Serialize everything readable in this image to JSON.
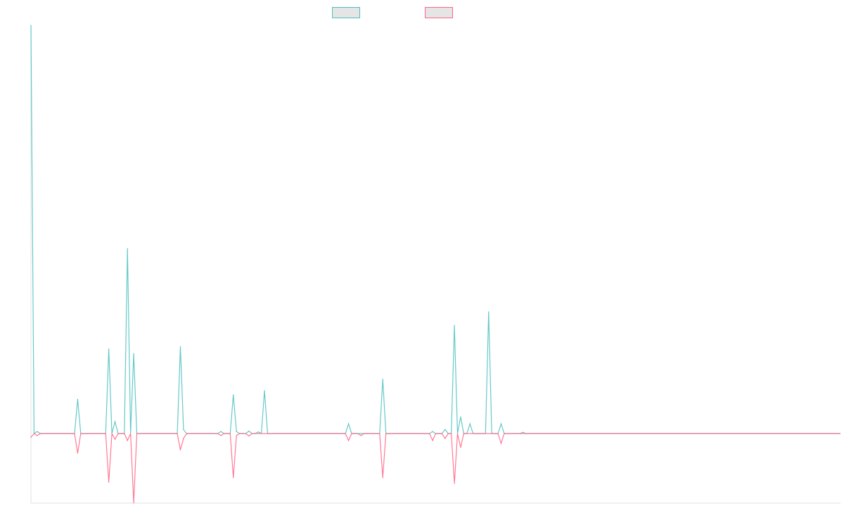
{
  "chart_data": {
    "type": "line",
    "title": "",
    "xlabel": "",
    "ylabel": "",
    "xlim": [
      0,
      260
    ],
    "ylim": [
      -17,
      100
    ],
    "grid": false,
    "legend_position": "top-center",
    "series": [
      {
        "name": "",
        "color": "#4bc0c0",
        "points": [
          [
            0,
            100
          ],
          [
            2,
            0.5
          ],
          [
            15,
            8.4
          ],
          [
            25,
            20.7
          ],
          [
            27,
            2.9
          ],
          [
            31,
            45.3
          ],
          [
            33,
            19.6
          ],
          [
            48,
            21.3
          ],
          [
            49,
            1.0
          ],
          [
            61,
            0.5
          ],
          [
            65,
            9.5
          ],
          [
            66,
            0.5
          ],
          [
            70,
            0.6
          ],
          [
            73,
            0.4
          ],
          [
            75,
            10.5
          ],
          [
            102,
            2.4
          ],
          [
            113,
            13.3
          ],
          [
            129,
            0.5
          ],
          [
            133,
            1.0
          ],
          [
            136,
            26.5
          ],
          [
            138,
            4.1
          ],
          [
            141,
            2.4
          ],
          [
            147,
            29.8
          ],
          [
            151,
            2.4
          ],
          [
            158,
            0.3
          ]
        ]
      },
      {
        "name": "",
        "color": "#ff6384",
        "points": [
          [
            0,
            -0.9
          ],
          [
            2,
            -0.5
          ],
          [
            15,
            -4.8
          ],
          [
            25,
            -11.9
          ],
          [
            27,
            -1.4
          ],
          [
            31,
            -1.7
          ],
          [
            33,
            -17
          ],
          [
            48,
            -4.0
          ],
          [
            49,
            -1.2
          ],
          [
            61,
            -0.5
          ],
          [
            65,
            -10.8
          ],
          [
            66,
            -0.5
          ],
          [
            70,
            -0.6
          ],
          [
            102,
            -1.7
          ],
          [
            106,
            -0.5
          ],
          [
            113,
            -10.8
          ],
          [
            129,
            -1.7
          ],
          [
            133,
            -1.2
          ],
          [
            136,
            -12.2
          ],
          [
            138,
            -3.4
          ],
          [
            151,
            -2.4
          ]
        ]
      }
    ]
  }
}
